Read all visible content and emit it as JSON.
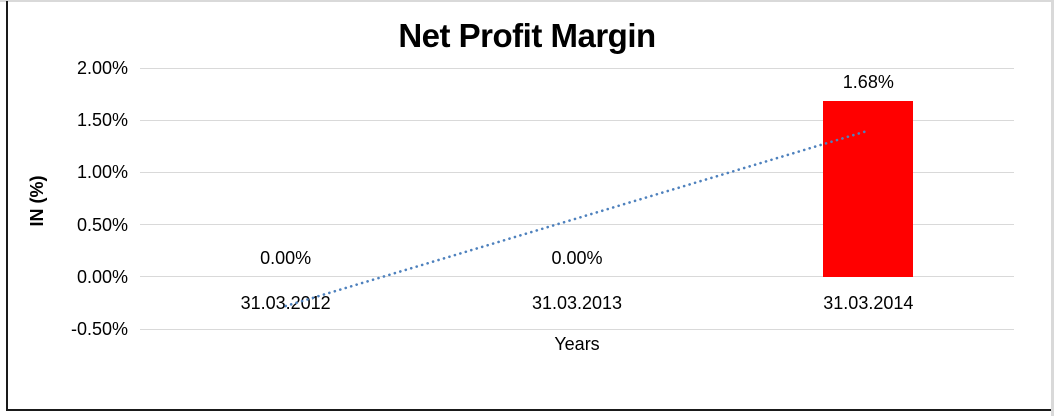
{
  "window": {
    "background": "#FFFFFF",
    "frame_light_color": "#D9D9D9",
    "frame_dark_color": "#1A1A1A"
  },
  "chart_data": {
    "type": "bar",
    "title": "Net Profit Margin",
    "xlabel": "Years",
    "ylabel": "IN (%)",
    "categories": [
      "31.03.2012",
      "31.03.2013",
      "31.03.2014"
    ],
    "values": [
      0.0,
      0.0,
      1.68
    ],
    "data_labels": [
      "0.00%",
      "0.00%",
      "1.68%"
    ],
    "unit": "%",
    "ylim": [
      -0.5,
      2.0
    ],
    "yticks": [
      {
        "value": 2.0,
        "label": "2.00%"
      },
      {
        "value": 1.5,
        "label": "1.50%"
      },
      {
        "value": 1.0,
        "label": "1.00%"
      },
      {
        "value": 0.5,
        "label": "0.50%"
      },
      {
        "value": 0.0,
        "label": "0.00%"
      },
      {
        "value": -0.5,
        "label": "-0.50%"
      }
    ],
    "grid": "horizontal",
    "legend": "none",
    "bar_color": "#FF0000",
    "gridline_color": "#D9D9D9",
    "text_color": "#000000",
    "trendline": {
      "type": "linear",
      "style": "dotted",
      "color": "#4E81BD",
      "points": [
        {
          "category_index": 0,
          "value": -0.28
        },
        {
          "category_index": 2,
          "value": 1.4
        }
      ]
    }
  }
}
